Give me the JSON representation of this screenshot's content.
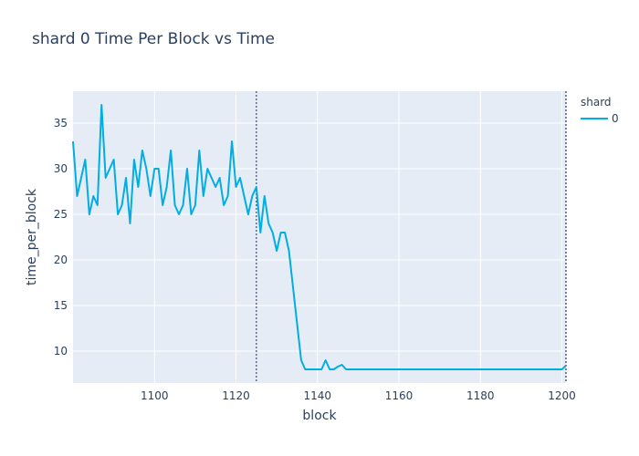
{
  "chart_data": {
    "type": "line",
    "title": "shard 0 Time Per Block vs Time",
    "xlabel": "block",
    "ylabel": "time_per_block",
    "xlim": [
      1080,
      1201
    ],
    "ylim": [
      6.5,
      38.5
    ],
    "x_ticks": [
      1100,
      1120,
      1140,
      1160,
      1180,
      1200
    ],
    "y_ticks": [
      10,
      15,
      20,
      25,
      30,
      35
    ],
    "grid": true,
    "legend": {
      "title": "shard",
      "placement": "right"
    },
    "series": [
      {
        "name": "0",
        "color": "#00aee3",
        "x": [
          1080,
          1081,
          1082,
          1083,
          1084,
          1085,
          1086,
          1087,
          1088,
          1089,
          1090,
          1091,
          1092,
          1093,
          1094,
          1095,
          1096,
          1097,
          1098,
          1099,
          1100,
          1101,
          1102,
          1103,
          1104,
          1105,
          1106,
          1107,
          1108,
          1109,
          1110,
          1111,
          1112,
          1113,
          1114,
          1115,
          1116,
          1117,
          1118,
          1119,
          1120,
          1121,
          1122,
          1123,
          1124,
          1125,
          1126,
          1127,
          1128,
          1129,
          1130,
          1131,
          1132,
          1133,
          1134,
          1135,
          1136,
          1137,
          1138,
          1139,
          1140,
          1141,
          1142,
          1143,
          1144,
          1145,
          1146,
          1147,
          1148,
          1149,
          1150,
          1160,
          1170,
          1180,
          1190,
          1200,
          1201
        ],
        "y": [
          33,
          27,
          29,
          31,
          25,
          27,
          26,
          37,
          29,
          30,
          31,
          25,
          26,
          29,
          24,
          31,
          28,
          32,
          30,
          27,
          30,
          30,
          26,
          28,
          32,
          26,
          25,
          26,
          30,
          25,
          26,
          32,
          27,
          30,
          29,
          28,
          29,
          26,
          27,
          33,
          28,
          29,
          27,
          25,
          27,
          28,
          23,
          27,
          24,
          23,
          21,
          23,
          23,
          21,
          17,
          13,
          9,
          8,
          8,
          8,
          8,
          8,
          9,
          8,
          8,
          8.3,
          8.5,
          8,
          8,
          8,
          8,
          8,
          8,
          8,
          8,
          8,
          8.4
        ]
      }
    ],
    "vlines": [
      1125,
      1201
    ]
  }
}
